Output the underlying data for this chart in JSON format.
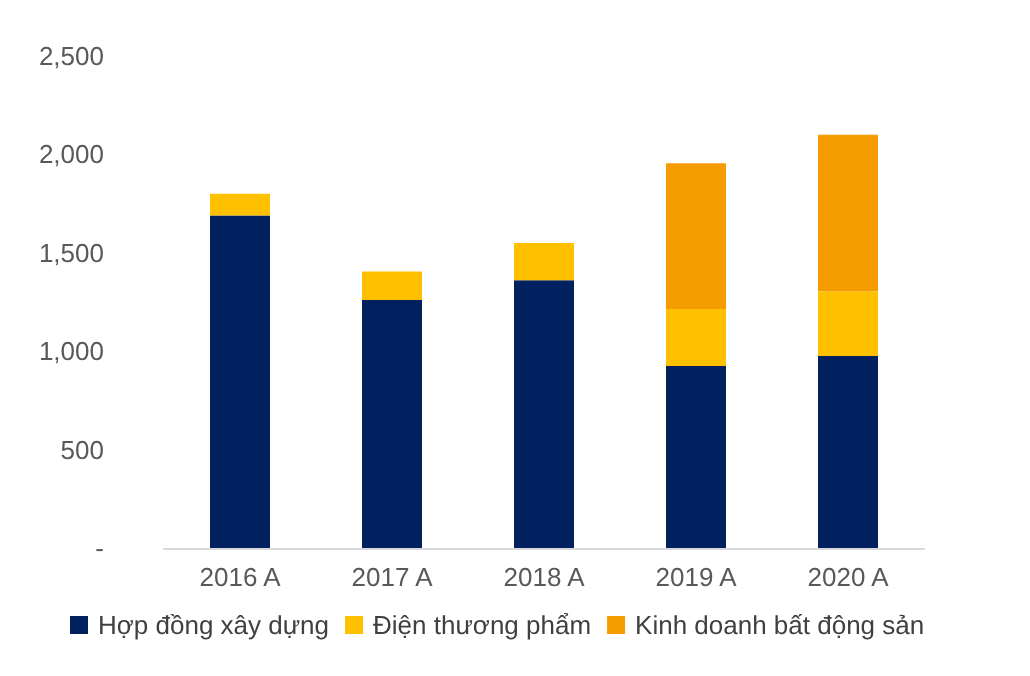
{
  "chart_data": {
    "type": "bar",
    "stacked": true,
    "categories": [
      "2016 A",
      "2017 A",
      "2018 A",
      "2019 A",
      "2020 A"
    ],
    "series": [
      {
        "name": "Hợp đồng xây dựng",
        "color": "#002060",
        "values": [
          1690,
          1260,
          1360,
          925,
          975
        ]
      },
      {
        "name": "Điện thương phẩm",
        "color": "#ffc000",
        "values": [
          110,
          145,
          190,
          290,
          330
        ]
      },
      {
        "name": "Kinh doanh bất động sản",
        "color": "#f59c00",
        "values": [
          null,
          null,
          null,
          740,
          795
        ]
      }
    ],
    "ylim": [
      0,
      2500
    ],
    "yticks": [
      {
        "value": 0,
        "label": "-"
      },
      {
        "value": 500,
        "label": "500"
      },
      {
        "value": 1000,
        "label": "1,000"
      },
      {
        "value": 1500,
        "label": "1,500"
      },
      {
        "value": 2000,
        "label": "2,000"
      },
      {
        "value": 2500,
        "label": "2,500"
      }
    ],
    "grid": false,
    "legend": "bottom"
  }
}
